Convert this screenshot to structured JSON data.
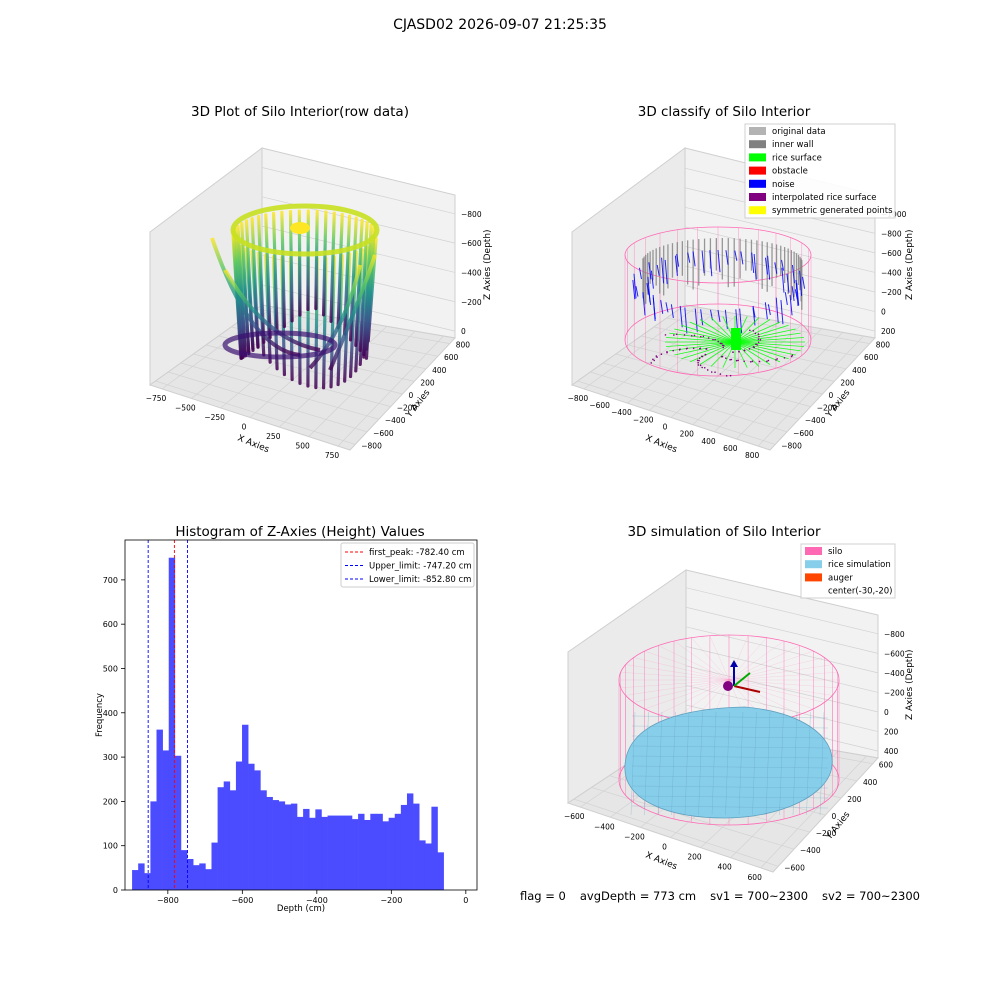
{
  "suptitle": "CJASD02 2026-09-07 21:25:35",
  "status": {
    "flag": "flag = 0",
    "avg_depth": "avgDepth = 773 cm",
    "sv1": "sv1 = 700~2300",
    "sv2": "sv2 = 700~2300"
  },
  "colors": {
    "original": "#b3b3b3",
    "inner_wall": "#808080",
    "rice_surface": "#00ff00",
    "obstacle": "#ff0000",
    "noise": "#0000ff",
    "interpolated": "#800080",
    "symmetric": "#ffff00",
    "silo": "#ff69b4",
    "rice_sim": "#87ceeb",
    "auger": "#ff4500",
    "hist_bar": "#4b4bff"
  },
  "chart_data": [
    {
      "type": "scatter",
      "subtype": "3d",
      "title": "3D Plot of Silo Interior(row data)",
      "xlabel": "X Axies",
      "ylabel": "Y Axies",
      "zlabel": "Z Axies (Depth)",
      "x_ticks": [
        "−750",
        "−500",
        "−250",
        "0",
        "250",
        "500",
        "750"
      ],
      "y_ticks": [
        "−800",
        "−600",
        "−400",
        "−200",
        "0",
        "200",
        "400",
        "600",
        "800"
      ],
      "z_ticks": [
        "0",
        "−200",
        "−400",
        "−600",
        "−800"
      ],
      "colormap": "viridis"
    },
    {
      "type": "scatter",
      "subtype": "3d",
      "title": "3D classify of Silo Interior",
      "xlabel": "X Axies",
      "ylabel": "Y Axies",
      "zlabel": "Z Axies (Depth)",
      "x_ticks": [
        "−800",
        "−600",
        "−400",
        "−200",
        "0",
        "200",
        "400",
        "600",
        "800"
      ],
      "y_ticks": [
        "−800",
        "−600",
        "−400",
        "−200",
        "0",
        "200",
        "400",
        "600",
        "800"
      ],
      "z_ticks": [
        "200",
        "0",
        "−200",
        "−400",
        "−600",
        "−800",
        "−1000"
      ],
      "legend": [
        "original data",
        "inner wall",
        "rice surface",
        "obstacle",
        "noise",
        "interpolated rice surface",
        "symmetric generated points"
      ],
      "legend_position": "top-right"
    },
    {
      "type": "bar",
      "subtype": "histogram",
      "title": "Histogram of Z-Axies (Height) Values",
      "xlabel": "Depth (cm)",
      "ylabel": "Frequency",
      "xlim": [
        -915,
        30
      ],
      "ylim": [
        0,
        790
      ],
      "x_ticks": [
        -800,
        -600,
        -400,
        -200,
        0
      ],
      "y_ticks": [
        0,
        100,
        200,
        300,
        400,
        500,
        600,
        700
      ],
      "bin_start": -896,
      "bin_width": 16.4,
      "values": [
        45,
        60,
        38,
        200,
        362,
        315,
        750,
        303,
        90,
        70,
        56,
        60,
        47,
        107,
        232,
        245,
        225,
        290,
        373,
        285,
        270,
        225,
        210,
        203,
        200,
        193,
        195,
        165,
        183,
        163,
        182,
        165,
        168,
        168,
        168,
        168,
        160,
        172,
        158,
        172,
        172,
        155,
        163,
        172,
        192,
        218,
        195,
        112,
        105,
        188,
        85
      ],
      "vlines": [
        {
          "label": "first_peak: -782.40 cm",
          "x": -782.4,
          "color": "#ff0000"
        },
        {
          "label": "Upper_limit: -747.20 cm",
          "x": -747.2,
          "color": "#0000ff"
        },
        {
          "label": "Lower_limit: -852.80 cm",
          "x": -852.8,
          "color": "#0000ff"
        }
      ],
      "legend_position": "top-right"
    },
    {
      "type": "area",
      "subtype": "3d-surface",
      "title": "3D simulation of Silo Interior",
      "xlabel": "X Axies",
      "ylabel": "Y Axies",
      "zlabel": "Z Axies (Depth)",
      "x_ticks": [
        "−600",
        "−400",
        "−200",
        "0",
        "200",
        "400",
        "600"
      ],
      "y_ticks": [
        "−600",
        "−400",
        "−200",
        "0",
        "200",
        "400",
        "600"
      ],
      "z_ticks": [
        "400",
        "200",
        "0",
        "−200",
        "−400",
        "−600",
        "−800"
      ],
      "legend": [
        "silo",
        "rice simulation",
        "auger",
        "center(-30,-20)"
      ],
      "legend_position": "top-right"
    }
  ]
}
